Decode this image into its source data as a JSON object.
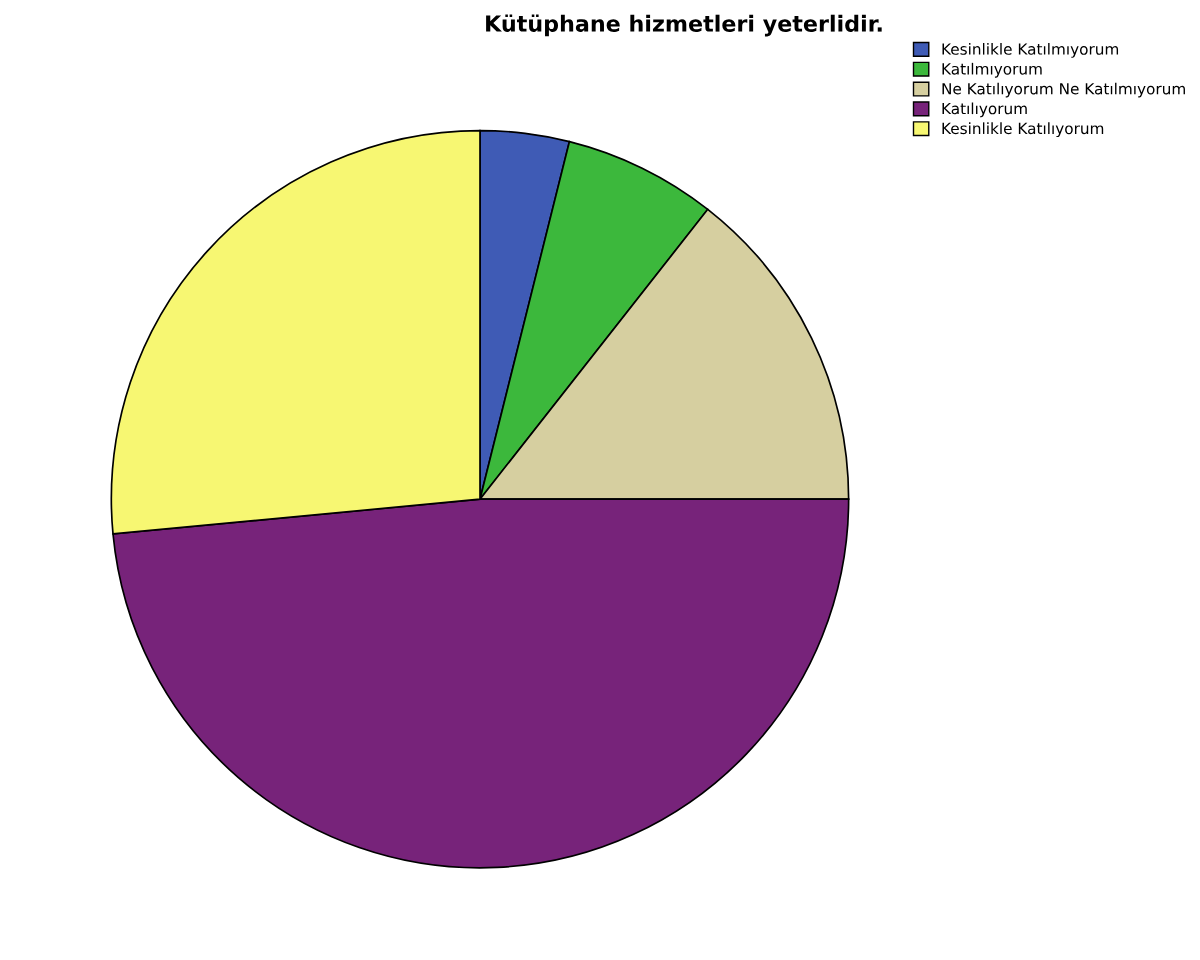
{
  "chart_data": {
    "type": "pie",
    "title": "Kütüphane hizmetleri yeterlidir.",
    "categories": [
      "Kesinlikle Katılmıyorum",
      "Katılmıyorum",
      "Ne Katılıyorum Ne Katılmıyorum",
      "Katılıyorum",
      "Kesinlikle Katılıyorum"
    ],
    "values": [
      3.9,
      6.7,
      14.4,
      48.5,
      26.5
    ],
    "colors": [
      "#3f5bb5",
      "#3cb83c",
      "#d6cfa0",
      "#77237a",
      "#f7f772"
    ],
    "legend": "top right"
  }
}
